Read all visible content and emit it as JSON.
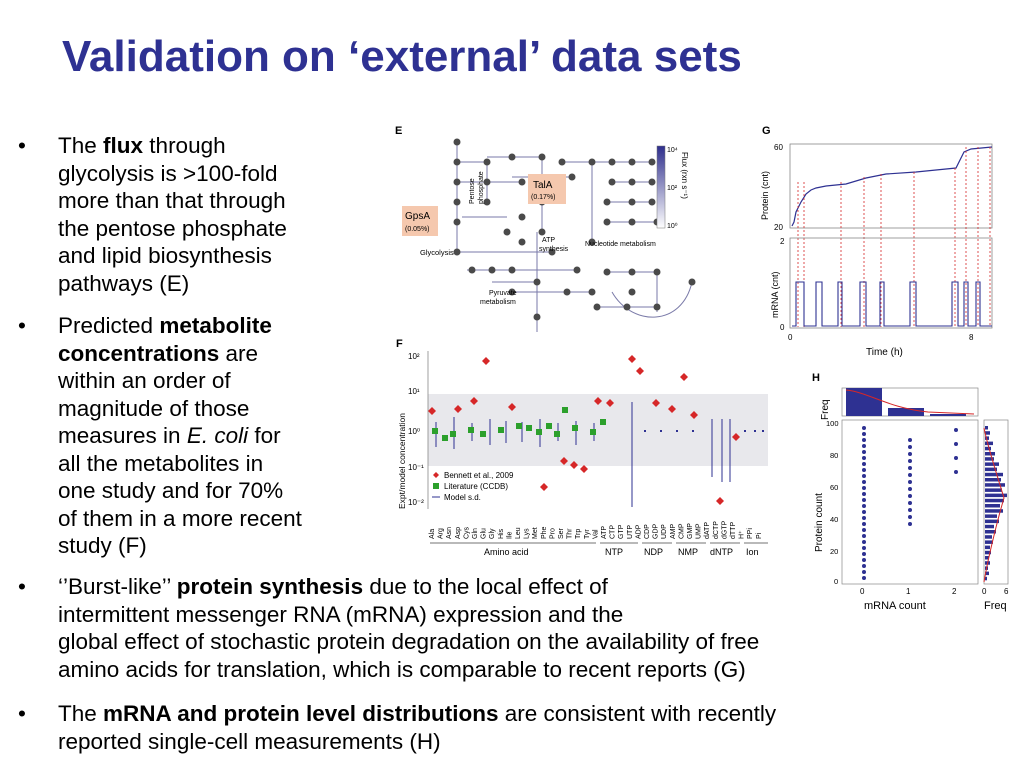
{
  "title": "Validation on ‘external’ data sets",
  "bullet_char": "•",
  "bullets": {
    "b1": {
      "l1a": "The ",
      "l1b": "flux",
      "l1c": " through",
      "l2": "glycolysis is >100-fold",
      "l3": "more than that through",
      "l4": "the pentose phosphate",
      "l5": "and lipid biosynthesis",
      "l6": "pathways (E)"
    },
    "b2": {
      "l1a": "Predicted ",
      "l1b": "metabolite",
      "l2a": "concentrations",
      "l2b": " are",
      "l3": "within an order of",
      "l4": "magnitude of those",
      "l5a": "measures in ",
      "l5b": "E. coli",
      "l5c": " for",
      "l6": "all the metabolites in",
      "l7": "one study and for 70%",
      "l8": "of them in a more recent",
      "l9": "study (F)"
    },
    "b3": {
      "l1a": "‘’Burst-like’’ ",
      "l1b": "protein synthesis",
      "l1c": " due to the local effect of",
      "l2": "intermittent messenger RNA (mRNA) expression and the",
      "l3": "global effect of stochastic protein degradation on the availability of free",
      "l4": "amino acids for translation, which is comparable to recent reports (G)"
    },
    "b4": {
      "l1a": "The ",
      "l1b": "mRNA and protein level distributions",
      "l1c": " are consistent with recently",
      "l2": "reported single-cell measurements (H)"
    }
  },
  "figE": {
    "panel": "E",
    "gpsa": "GpsA",
    "gpsa_pct": "(0.05%)",
    "tala": "TalA",
    "tala_pct": "(0.17%)",
    "glycolysis": "Glycolysis",
    "pentose1": "Pentose",
    "pentose2": "phosphate",
    "atp1": "ATP",
    "atp2": "synthesis",
    "nucleotide": "Nucleotide metabolism",
    "pyruvate1": "Pyruvate",
    "pyruvate2": "metabolism",
    "cb_title": "Flux (rxn s⁻¹)",
    "cb_top": "10⁴",
    "cb_mid": "10²",
    "cb_bot": "10⁰"
  },
  "figG": {
    "panel": "G",
    "protein_ylabel": "Protein (cnt)",
    "protein_t60": "60",
    "protein_t20": "20",
    "mrna_ylabel": "mRNA (cnt)",
    "mrna_t2": "2",
    "mrna_t0": "0",
    "x0": "0",
    "x8": "8",
    "xlabel": "Time (h)"
  },
  "figF": {
    "panel": "F",
    "ylabel": "Expt/model concentration",
    "yticks": [
      "10²",
      "10¹",
      "10⁰",
      "10⁻¹",
      "10⁻²"
    ],
    "legend": [
      "Bennett et al., 2009",
      "Literature (CCDB)",
      "Model s.d."
    ],
    "colors": {
      "bennett": "#d62728",
      "literature": "#2ca02c",
      "model": "#2e3192",
      "band": "#e8e8ec"
    },
    "categories": [
      "Ala",
      "Arg",
      "Asn",
      "Asp",
      "Cys",
      "Gln",
      "Glu",
      "Gly",
      "His",
      "Ile",
      "Leu",
      "Lys",
      "Met",
      "Phe",
      "Pro",
      "Ser",
      "Thr",
      "Trp",
      "Tyr",
      "Val",
      "ATP",
      "CTP",
      "GTP",
      "UTP",
      "ADP",
      "CDP",
      "GDP",
      "UDP",
      "AMP",
      "CMP",
      "GMP",
      "UMP",
      "dATP",
      "dCTP",
      "dGTP",
      "dTTP",
      "H⁺",
      "PPi",
      "Pi"
    ],
    "groups": [
      "Amino acid",
      "NTP",
      "NDP",
      "NMP",
      "dNTP",
      "Ion"
    ]
  },
  "figH": {
    "panel": "H",
    "ylabel_top": "Freq",
    "ylabel_main": "Protein count",
    "xlabel_main": "mRNA count",
    "xlabel_right": "Freq",
    "yt100": "100",
    "yt80": "80",
    "yt60": "60",
    "yt40": "40",
    "yt20": "20",
    "yt0": "0",
    "xt0": "0",
    "xt1": "1",
    "xt2": "2",
    "rt0": "0",
    "rt6": "6"
  }
}
